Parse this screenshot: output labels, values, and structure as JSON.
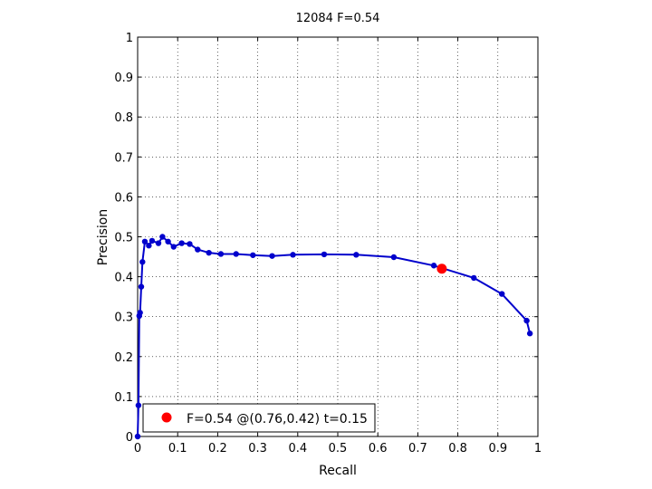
{
  "chart_data": {
    "type": "line",
    "title": "12084 F=0.54",
    "xlabel": "Recall",
    "ylabel": "Precision",
    "xlim": [
      0,
      1
    ],
    "ylim": [
      0,
      1
    ],
    "grid": true,
    "xticks": [
      0,
      0.1,
      0.2,
      0.3,
      0.4,
      0.5,
      0.6,
      0.7,
      0.8,
      0.9,
      1
    ],
    "yticks": [
      0,
      0.1,
      0.2,
      0.3,
      0.4,
      0.5,
      0.6,
      0.7,
      0.8,
      0.9,
      1
    ],
    "xtick_labels": [
      "0",
      "0.1",
      "0.2",
      "0.3",
      "0.4",
      "0.5",
      "0.6",
      "0.7",
      "0.8",
      "0.9",
      "1"
    ],
    "ytick_labels": [
      "0",
      "0.1",
      "0.2",
      "0.3",
      "0.4",
      "0.5",
      "0.6",
      "0.7",
      "0.8",
      "0.9",
      "1"
    ],
    "series": [
      {
        "color": "#0000cc",
        "x": [
          0.0,
          0.002,
          0.004,
          0.006,
          0.009,
          0.012,
          0.018,
          0.028,
          0.036,
          0.052,
          0.062,
          0.076,
          0.09,
          0.11,
          0.13,
          0.15,
          0.178,
          0.208,
          0.246,
          0.288,
          0.336,
          0.388,
          0.466,
          0.546,
          0.64,
          0.74,
          0.84,
          0.91,
          0.972,
          0.98
        ],
        "y": [
          0.0,
          0.078,
          0.302,
          0.31,
          0.375,
          0.437,
          0.488,
          0.478,
          0.49,
          0.484,
          0.5,
          0.488,
          0.475,
          0.484,
          0.482,
          0.468,
          0.46,
          0.457,
          0.457,
          0.454,
          0.452,
          0.455,
          0.456,
          0.455,
          0.449,
          0.428,
          0.397,
          0.357,
          0.29,
          0.258
        ]
      }
    ],
    "highlight": {
      "x": 0.76,
      "y": 0.42,
      "color": "#ff0000"
    },
    "legend": {
      "position": "bottom-left",
      "text": "F=0.54 @(0.76,0.42) t=0.15"
    }
  }
}
